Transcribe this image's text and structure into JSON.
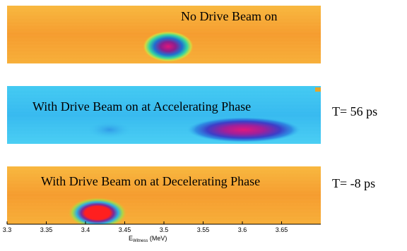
{
  "chart_data": {
    "type": "heatmap",
    "x_axis": {
      "label_main": "E",
      "label_sub": "Witness",
      "label_unit": " (MeV)",
      "range": [
        3.3,
        3.7
      ],
      "ticks": [
        "3.3",
        "3.35",
        "3.4",
        "3.45",
        "3.5",
        "3.55",
        "3.6",
        "3.65"
      ],
      "tick_values": [
        3.3,
        3.35,
        3.4,
        3.45,
        3.5,
        3.55,
        3.6,
        3.65
      ]
    },
    "colormap": "jet",
    "panels": [
      {
        "label": "No Drive Beam on",
        "side_label": "",
        "background_level": 0.78,
        "spot": {
          "x_center": 3.483,
          "x_span": [
            3.465,
            3.51
          ],
          "peak_level": 0.97
        }
      },
      {
        "label": "With Drive Beam on at Accelerating Phase",
        "side_label": "T= 56 ps",
        "background_level": 0.38,
        "spot": {
          "x_center": 3.585,
          "x_span": [
            3.545,
            3.66
          ],
          "peak_level": 0.95
        }
      },
      {
        "label": "With Drive Beam on at Decelerating Phase",
        "side_label": "T= -8 ps",
        "background_level": 0.78,
        "spot": {
          "x_center": 3.405,
          "x_span": [
            3.38,
            3.43
          ],
          "peak_level": 1.0
        }
      }
    ]
  }
}
